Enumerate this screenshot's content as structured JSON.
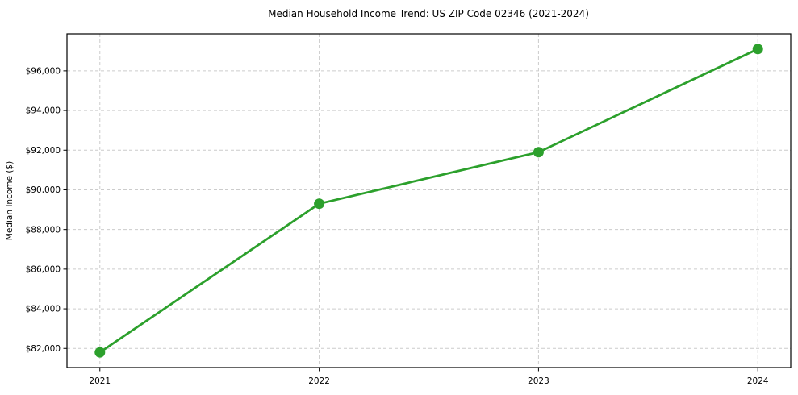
{
  "chart_data": {
    "type": "line",
    "title": "Median Household Income Trend: US ZIP Code 02346 (2021-2024)",
    "xlabel": "",
    "ylabel": "Median Income ($)",
    "x": [
      2021,
      2022,
      2023,
      2024
    ],
    "values": [
      81800,
      89300,
      91900,
      97100
    ],
    "xtick_labels": [
      "2021",
      "2022",
      "2023",
      "2024"
    ],
    "ytick_values": [
      82000,
      84000,
      86000,
      88000,
      90000,
      92000,
      94000,
      96000
    ],
    "ytick_labels": [
      "$82,000",
      "$84,000",
      "$86,000",
      "$88,000",
      "$90,000",
      "$92,000",
      "$94,000",
      "$96,000"
    ],
    "xlim": [
      2020.85,
      2024.15
    ],
    "ylim": [
      81035,
      97865
    ],
    "grid": true,
    "grid_color": "#cccccc",
    "line_color": "#2ca02c",
    "marker_color": "#2ca02c",
    "spine_color": "#000000",
    "background_color": "#ffffff",
    "legend": "none"
  }
}
